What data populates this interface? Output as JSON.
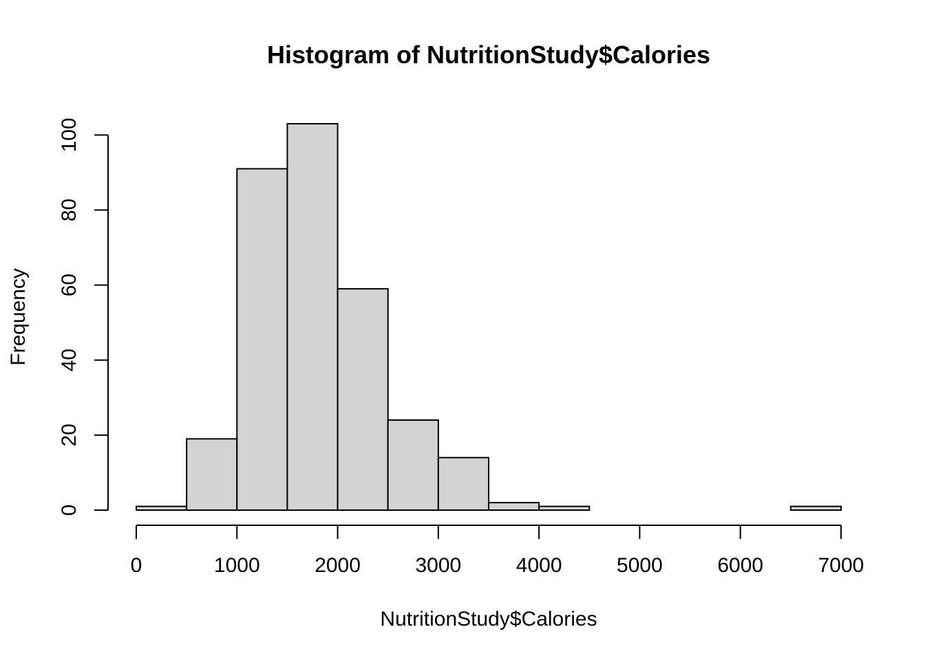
{
  "chart_data": {
    "type": "bar",
    "subtype": "histogram",
    "title": "Histogram of NutritionStudy$Calories",
    "xlabel": "NutritionStudy$Calories",
    "ylabel": "Frequency",
    "bins": [
      {
        "from": 0,
        "to": 500,
        "count": 1
      },
      {
        "from": 500,
        "to": 1000,
        "count": 19
      },
      {
        "from": 1000,
        "to": 1500,
        "count": 91
      },
      {
        "from": 1500,
        "to": 2000,
        "count": 103
      },
      {
        "from": 2000,
        "to": 2500,
        "count": 59
      },
      {
        "from": 2500,
        "to": 3000,
        "count": 24
      },
      {
        "from": 3000,
        "to": 3500,
        "count": 14
      },
      {
        "from": 3500,
        "to": 4000,
        "count": 2
      },
      {
        "from": 4000,
        "to": 4500,
        "count": 1
      },
      {
        "from": 4500,
        "to": 5000,
        "count": 0
      },
      {
        "from": 5000,
        "to": 5500,
        "count": 0
      },
      {
        "from": 5500,
        "to": 6000,
        "count": 0
      },
      {
        "from": 6000,
        "to": 6500,
        "count": 0
      },
      {
        "from": 6500,
        "to": 7000,
        "count": 1
      }
    ],
    "xlim": [
      0,
      7000
    ],
    "ylim": [
      0,
      103
    ],
    "x_ticks": [
      0,
      1000,
      2000,
      3000,
      4000,
      5000,
      6000,
      7000
    ],
    "y_ticks": [
      0,
      20,
      40,
      60,
      80,
      100
    ],
    "grid": false,
    "colors": {
      "bar_fill": "#d3d3d3",
      "bar_stroke": "#000000"
    }
  }
}
